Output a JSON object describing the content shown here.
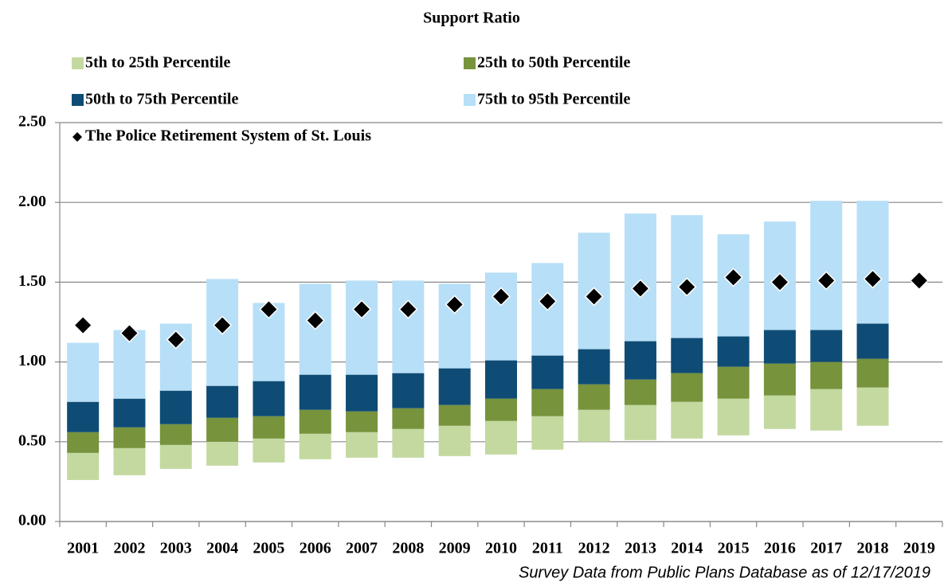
{
  "chart_data": {
    "type": "bar",
    "title": "Support Ratio",
    "categories": [
      "2001",
      "2002",
      "2003",
      "2004",
      "2005",
      "2006",
      "2007",
      "2008",
      "2009",
      "2010",
      "2011",
      "2012",
      "2013",
      "2014",
      "2015",
      "2016",
      "2017",
      "2018",
      "2019"
    ],
    "series": [
      {
        "name": "5th to 25th Percentile",
        "color": "#c4d9a0",
        "low": [
          0.26,
          0.29,
          0.33,
          0.35,
          0.37,
          0.39,
          0.4,
          0.4,
          0.41,
          0.42,
          0.45,
          0.5,
          0.51,
          0.52,
          0.54,
          0.58,
          0.57,
          0.6,
          null
        ],
        "high": [
          0.43,
          0.46,
          0.48,
          0.5,
          0.52,
          0.55,
          0.56,
          0.58,
          0.6,
          0.63,
          0.66,
          0.7,
          0.73,
          0.75,
          0.77,
          0.79,
          0.83,
          0.84,
          null
        ]
      },
      {
        "name": "25th to 50th Percentile",
        "color": "#77933c",
        "low": [
          0.43,
          0.46,
          0.48,
          0.5,
          0.52,
          0.55,
          0.56,
          0.58,
          0.6,
          0.63,
          0.66,
          0.7,
          0.73,
          0.75,
          0.77,
          0.79,
          0.83,
          0.84,
          null
        ],
        "high": [
          0.56,
          0.59,
          0.61,
          0.65,
          0.66,
          0.7,
          0.69,
          0.71,
          0.73,
          0.77,
          0.83,
          0.86,
          0.89,
          0.93,
          0.97,
          0.99,
          1.0,
          1.02,
          null
        ]
      },
      {
        "name": "50th to 75th Percentile",
        "color": "#0f4c75",
        "low": [
          0.56,
          0.59,
          0.61,
          0.65,
          0.66,
          0.7,
          0.69,
          0.71,
          0.73,
          0.77,
          0.83,
          0.86,
          0.89,
          0.93,
          0.97,
          0.99,
          1.0,
          1.02,
          null
        ],
        "high": [
          0.75,
          0.77,
          0.82,
          0.85,
          0.88,
          0.92,
          0.92,
          0.93,
          0.96,
          1.01,
          1.04,
          1.08,
          1.13,
          1.15,
          1.16,
          1.2,
          1.2,
          1.24,
          null
        ]
      },
      {
        "name": "75th to 95th Percentile",
        "color": "#b7dff7",
        "low": [
          0.75,
          0.77,
          0.82,
          0.85,
          0.88,
          0.92,
          0.92,
          0.93,
          0.96,
          1.01,
          1.04,
          1.08,
          1.13,
          1.15,
          1.16,
          1.2,
          1.2,
          1.24,
          null
        ],
        "high": [
          1.12,
          1.2,
          1.24,
          1.52,
          1.37,
          1.49,
          1.51,
          1.51,
          1.49,
          1.56,
          1.62,
          1.81,
          1.93,
          1.92,
          1.8,
          1.88,
          2.01,
          2.01,
          null
        ]
      }
    ],
    "markers": {
      "name": "The Police Retirement System of St. Louis",
      "color": "#000000",
      "values": [
        1.23,
        1.18,
        1.14,
        1.23,
        1.33,
        1.26,
        1.33,
        1.33,
        1.36,
        1.41,
        1.38,
        1.41,
        1.46,
        1.47,
        1.53,
        1.5,
        1.51,
        1.52,
        1.51
      ]
    },
    "ylim": [
      0,
      2.5
    ],
    "yticks": [
      {
        "value": 0,
        "label": "0.00"
      },
      {
        "value": 0.5,
        "label": "0.50"
      },
      {
        "value": 1,
        "label": "1.00"
      },
      {
        "value": 1.5,
        "label": "1.50"
      },
      {
        "value": 2,
        "label": "2.00"
      },
      {
        "value": 2.5,
        "label": "2.50"
      }
    ],
    "grid": true,
    "footnote": "Survey Data from Public Plans Database as of 12/17/2019"
  }
}
